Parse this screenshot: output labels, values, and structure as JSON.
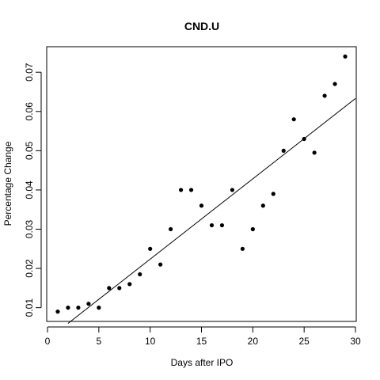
{
  "chart_data": {
    "type": "scatter",
    "title": "CND.U",
    "xlabel": "Days after IPO",
    "ylabel": "Percentage Change",
    "xlim": [
      0,
      30
    ],
    "ylim": [
      0.0065,
      0.0765
    ],
    "x_ticks": [
      0,
      5,
      10,
      15,
      20,
      25,
      30
    ],
    "x_tick_labels": [
      "0",
      "5",
      "10",
      "15",
      "20",
      "25",
      "30"
    ],
    "y_ticks": [
      0.01,
      0.02,
      0.03,
      0.04,
      0.05,
      0.06,
      0.07
    ],
    "y_tick_labels": [
      "0.01",
      "0.02",
      "0.03",
      "0.04",
      "0.05",
      "0.06",
      "0.07"
    ],
    "grid": false,
    "legend": "none",
    "series": [
      {
        "x": [
          1,
          2,
          3,
          4,
          5,
          6,
          7,
          8,
          9,
          10,
          11,
          12,
          13,
          14,
          15,
          16,
          17,
          18,
          19,
          20,
          21,
          22,
          23,
          24,
          25,
          26,
          27,
          28,
          29
        ],
        "y": [
          0.009,
          0.01,
          0.01,
          0.011,
          0.01,
          0.015,
          0.015,
          0.016,
          0.0185,
          0.025,
          0.021,
          0.03,
          0.04,
          0.04,
          0.036,
          0.031,
          0.031,
          0.04,
          0.025,
          0.03,
          0.036,
          0.039,
          0.05,
          0.058,
          0.053,
          0.0495,
          0.064,
          0.067,
          0.074
        ]
      }
    ],
    "fit_line": {
      "type": "linear",
      "x_range": [
        2,
        30
      ],
      "y_range": [
        0.006,
        0.0633
      ]
    }
  },
  "colors": {
    "point": "#000000",
    "line": "#000000",
    "background": "#ffffff"
  }
}
